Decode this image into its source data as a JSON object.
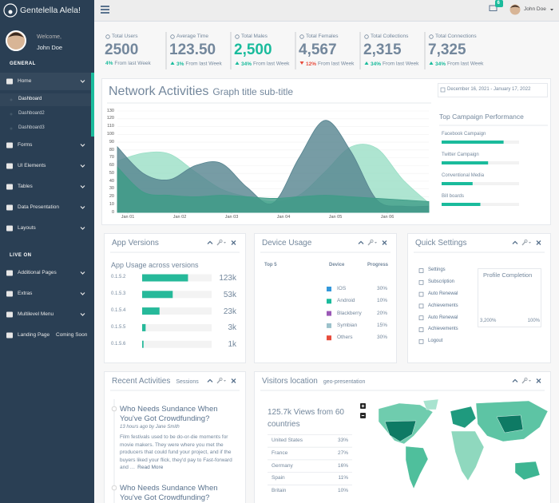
{
  "sidebar": {
    "brand": "Gentelella Alela!",
    "welcome": "Welcome,",
    "user": "John Doe",
    "sections": [
      {
        "title": "GENERAL",
        "items": [
          {
            "label": "Home",
            "submenu": [
              "Dashboard",
              "Dashboard2",
              "Dashboard3"
            ]
          },
          {
            "label": "Forms"
          },
          {
            "label": "UI Elements"
          },
          {
            "label": "Tables"
          },
          {
            "label": "Data Presentation"
          },
          {
            "label": "Layouts"
          }
        ]
      },
      {
        "title": "LIVE ON",
        "items": [
          {
            "label": "Additional Pages"
          },
          {
            "label": "Extras"
          },
          {
            "label": "Multilevel Menu"
          },
          {
            "label": "Landing Page",
            "badge": "Coming Soon"
          }
        ]
      }
    ]
  },
  "topbar": {
    "mail_count": 6,
    "user": "John Doe"
  },
  "stats": [
    {
      "label": "Total Users",
      "value": "2500",
      "change": "4%",
      "note": "From last Week"
    },
    {
      "label": "Average Time",
      "value": "123.50",
      "change": "3%",
      "trend": "up",
      "note": "From last Week"
    },
    {
      "label": "Total Males",
      "value": "2,500",
      "highlight": true,
      "change": "34%",
      "trend": "up",
      "note": "From last Week"
    },
    {
      "label": "Total Females",
      "value": "4,567",
      "change": "12%",
      "trend": "down",
      "note": "From last Week"
    },
    {
      "label": "Total Collections",
      "value": "2,315",
      "change": "34%",
      "trend": "up",
      "note": "From last Week"
    },
    {
      "label": "Total Connections",
      "value": "7,325",
      "change": "34%",
      "trend": "up",
      "note": "From last Week"
    }
  ],
  "network_activities": {
    "title": "Network Activities",
    "subtitle": "Graph title sub-title",
    "date_range": "December 16, 2021 - January 17, 2022",
    "chart": {
      "type": "area",
      "x": [
        -0.2,
        0.3,
        0.8,
        1.3,
        1.8,
        2.3,
        2.8,
        3.3,
        3.8,
        4.3,
        4.8,
        5.3,
        5.8
      ],
      "xlim": [
        -0.2,
        5.8
      ],
      "xticks": [
        {
          "value": 0,
          "label": "Jan 01"
        },
        {
          "value": 1,
          "label": "Jan 02"
        },
        {
          "value": 2,
          "label": "Jan 03"
        },
        {
          "value": 3,
          "label": "Jan 04"
        },
        {
          "value": 4,
          "label": "Jan 05"
        },
        {
          "value": 5,
          "label": "Jan 06"
        }
      ],
      "ylim": [
        0,
        130
      ],
      "yticks": [
        0,
        10,
        20,
        30,
        40,
        50,
        60,
        70,
        80,
        90,
        100,
        110,
        120,
        130
      ],
      "grid": true,
      "series": [
        {
          "color": "#9ADFC6",
          "values": [
            66,
            76,
            75,
            52,
            30,
            20,
            14,
            22,
            52,
            84,
            82,
            42,
            12
          ]
        },
        {
          "color": "#55838F",
          "values": [
            84,
            50,
            42,
            60,
            63,
            32,
            12,
            70,
            118,
            78,
            16,
            8,
            8
          ]
        },
        {
          "color": "#3E9C87",
          "values": [
            58,
            26,
            22,
            20,
            22,
            20,
            18,
            20,
            22,
            20,
            18,
            16,
            14
          ]
        }
      ]
    },
    "campaigns": {
      "title": "Top Campaign Performance",
      "color": "#1ABB9C",
      "items": [
        {
          "name": "Facebook Campaign",
          "value": 80
        },
        {
          "name": "Twitter Campaign",
          "value": 60
        },
        {
          "name": "Conventional Media",
          "value": 40
        },
        {
          "name": "Bill boards",
          "value": 50
        }
      ]
    }
  },
  "app_versions": {
    "title": "App Versions",
    "subtitle": "App Usage across versions",
    "color": "#26B99A",
    "rows": [
      {
        "version": "0.1.5.2",
        "progress": 66,
        "label": "123k"
      },
      {
        "version": "0.1.5.3",
        "progress": 44,
        "label": "53k"
      },
      {
        "version": "0.1.5.4",
        "progress": 25,
        "label": "23k"
      },
      {
        "version": "0.1.5.5",
        "progress": 5,
        "label": "3k"
      },
      {
        "version": "0.1.5.6",
        "progress": 2,
        "label": "1k"
      }
    ]
  },
  "device_usage": {
    "title": "Device Usage",
    "headers": [
      "Top 5",
      "Device",
      "Progress"
    ],
    "rows": [
      {
        "device": "IOS",
        "share": "30%",
        "color": "#3498DB"
      },
      {
        "device": "Android",
        "share": "10%",
        "color": "#1ABB9C"
      },
      {
        "device": "Blackberry",
        "share": "20%",
        "color": "#9B59B6"
      },
      {
        "device": "Symbian",
        "share": "15%",
        "color": "#9CC2CB"
      },
      {
        "device": "Others",
        "share": "30%",
        "color": "#E74C3C"
      }
    ]
  },
  "quick_settings": {
    "title": "Quick Settings",
    "items": [
      "Settings",
      "Subscription",
      "Auto Renewal",
      "Achievements",
      "Auto Renewal",
      "Achievements",
      "Logout"
    ],
    "profile": {
      "title": "Profile Completion",
      "min": "3,200%",
      "max": "100%"
    }
  },
  "recent_activities": {
    "title": "Recent Activities",
    "subtitle": "Sessions",
    "items": [
      {
        "title": "Who Needs Sundance When You've Got Crowdfunding?",
        "meta": "13 hours ago by Jane Smith",
        "body": "Film festivals used to be do-or-die moments for movie makers. They were where you met the producers that could fund your project, and if the buyers liked your flick, they'd pay to Fast-forward and …",
        "link": "Read More"
      },
      {
        "title": "Who Needs Sundance When You've Got Crowdfunding?"
      }
    ]
  },
  "visitors_location": {
    "title": "Visitors location",
    "subtitle": "geo-presentation",
    "headline": "125.7k Views from 60 countries",
    "rows": [
      {
        "country": "United States",
        "share": "33%"
      },
      {
        "country": "France",
        "share": "27%"
      },
      {
        "country": "Germany",
        "share": "16%"
      },
      {
        "country": "Spain",
        "share": "11%"
      },
      {
        "country": "Britain",
        "share": "10%"
      }
    ]
  }
}
